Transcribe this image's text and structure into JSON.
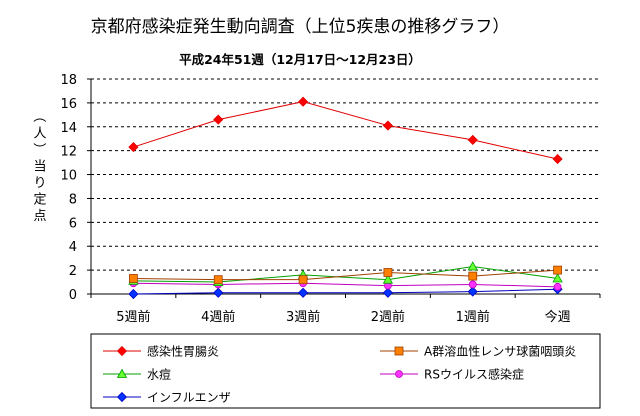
{
  "chart_data": {
    "type": "line",
    "title": "京都府感染症発生動向調査（上位5疾患の推移グラフ）",
    "subtitle": "平成24年51週（12月17日〜12月23日）",
    "ylabel": "（人）当り定点",
    "xlabel": "",
    "categories": [
      "5週前",
      "4週前",
      "3週前",
      "2週前",
      "1週前",
      "今週"
    ],
    "ylim": [
      0,
      18
    ],
    "yticks": [
      0,
      2,
      4,
      6,
      8,
      10,
      12,
      14,
      16,
      18
    ],
    "grid": true,
    "legend_position": "bottom",
    "series": [
      {
        "name": "感染性胃腸炎",
        "marker": "diamond",
        "color": "#e00000",
        "fill": "#ff0000",
        "values": [
          12.3,
          14.6,
          16.1,
          14.1,
          12.9,
          11.3
        ]
      },
      {
        "name": "A群溶血性レンサ球菌咽頭炎",
        "marker": "square",
        "color": "#a04000",
        "fill": "#ff7f00",
        "values": [
          1.3,
          1.2,
          1.2,
          1.8,
          1.5,
          2.0
        ]
      },
      {
        "name": "水痘",
        "marker": "triangle",
        "color": "#00a000",
        "fill": "#66ff33",
        "values": [
          1.1,
          1.0,
          1.6,
          1.2,
          2.3,
          1.3
        ]
      },
      {
        "name": "RSウイルス感染症",
        "marker": "circle",
        "color": "#c000c0",
        "fill": "#ff33ff",
        "values": [
          0.9,
          0.8,
          0.9,
          0.7,
          0.8,
          0.6
        ]
      },
      {
        "name": "インフルエンザ",
        "marker": "diamond",
        "color": "#0000c0",
        "fill": "#0033ff",
        "values": [
          0.0,
          0.1,
          0.1,
          0.1,
          0.2,
          0.4
        ]
      }
    ]
  }
}
